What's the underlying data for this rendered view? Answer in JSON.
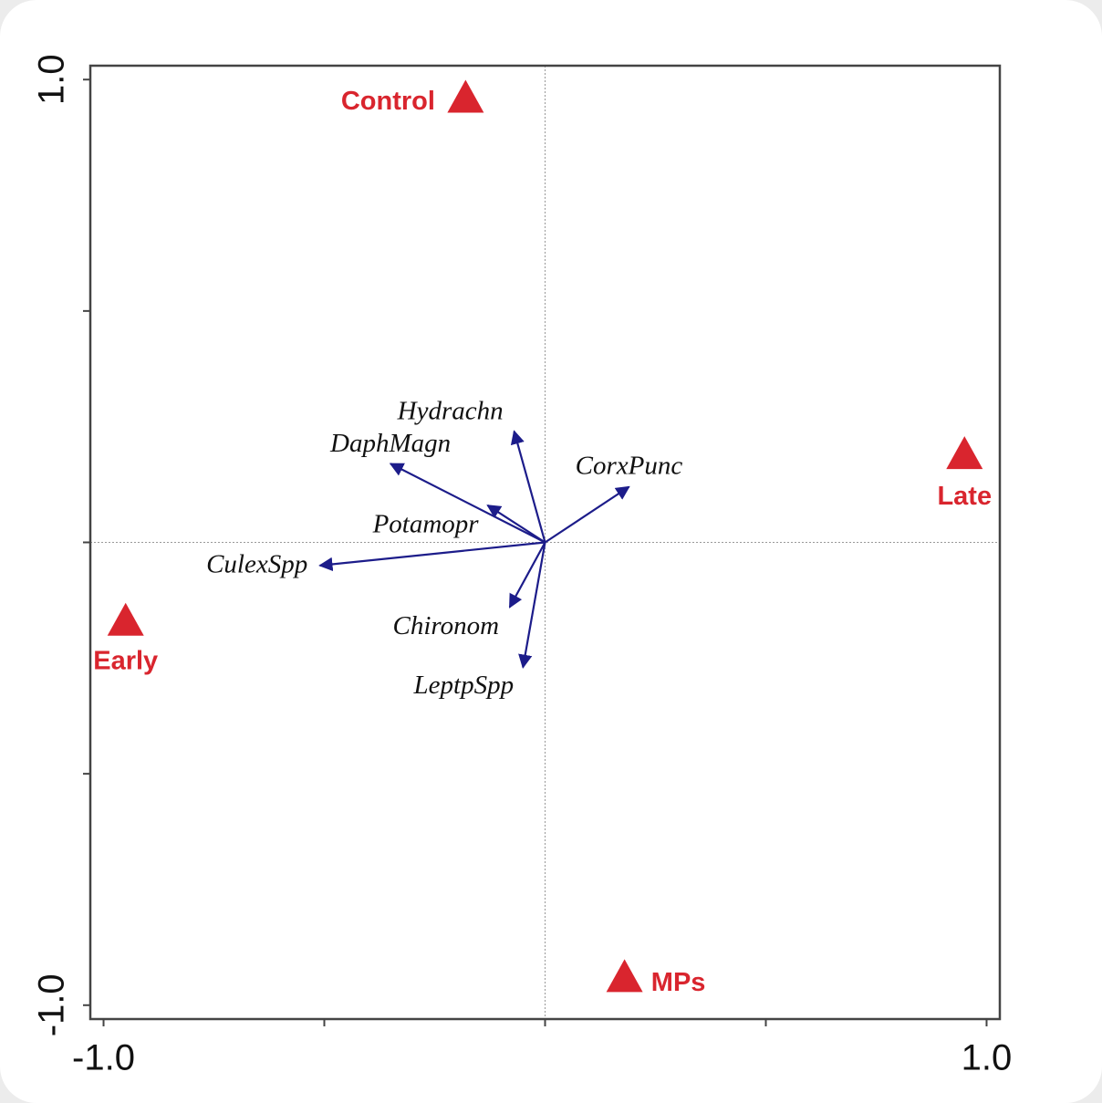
{
  "chart_data": {
    "type": "biplot",
    "xlim": [
      -1.03,
      1.03
    ],
    "ylim": [
      -1.03,
      1.03
    ],
    "xticks": [
      {
        "value": -1,
        "label": "-1.0"
      },
      {
        "value": 1,
        "label": "1.0"
      }
    ],
    "yticks": [
      {
        "value": -1,
        "label": "-1.0"
      },
      {
        "value": 1,
        "label": "1.0"
      }
    ],
    "xminorticks": [
      -0.5,
      0,
      0.5
    ],
    "yminorticks": [
      -0.5,
      0,
      0.5
    ],
    "sites": {
      "color": "#d9252e",
      "names": [
        "Control",
        "Late",
        "Early",
        "MPs"
      ],
      "x": [
        -0.18,
        0.95,
        -0.95,
        0.18
      ],
      "y": [
        0.96,
        0.19,
        -0.17,
        -0.94
      ]
    },
    "species": {
      "color": "#1c1c8a",
      "names": [
        "Hydrachn",
        "DaphMagn",
        "Potamopr",
        "CorxPunc",
        "CulexSpp",
        "Chironom",
        "LeptpSpp"
      ],
      "x": [
        -0.07,
        -0.35,
        -0.13,
        0.19,
        -0.51,
        -0.08,
        -0.05
      ],
      "y": [
        0.24,
        0.17,
        0.08,
        0.12,
        -0.05,
        -0.14,
        -0.27
      ]
    }
  }
}
